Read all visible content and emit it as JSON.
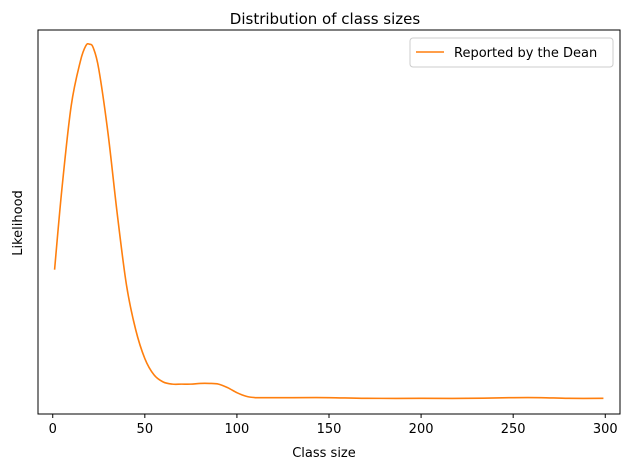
{
  "chart_data": {
    "type": "line",
    "title": "Distribution of class sizes",
    "xlabel": "Class size",
    "ylabel": "Likelihood",
    "xlim": [
      -8,
      308
    ],
    "ylim": [
      -0.002,
      0.052
    ],
    "x_ticks": [
      0,
      50,
      100,
      150,
      200,
      250,
      300
    ],
    "y_ticks_shown": false,
    "grid": false,
    "legend": {
      "placement": "top-right"
    },
    "series": [
      {
        "name": "Reported by the Dean",
        "color": "#ff7f0e",
        "x": [
          1,
          5,
          10,
          15,
          18,
          20,
          22,
          25,
          30,
          35,
          40,
          45,
          50,
          55,
          60,
          65,
          70,
          75,
          80,
          85,
          90,
          95,
          100,
          105,
          110,
          115,
          120,
          130,
          150,
          170,
          200,
          225,
          250,
          265,
          280,
          299
        ],
        "y": [
          0.0183,
          0.0297,
          0.0413,
          0.0476,
          0.0498,
          0.05,
          0.0495,
          0.0465,
          0.0375,
          0.0262,
          0.0162,
          0.0099,
          0.0058,
          0.0035,
          0.0025,
          0.0022,
          0.0022,
          0.0022,
          0.0023,
          0.0023,
          0.0022,
          0.0017,
          0.001,
          0.0005,
          0.0003,
          0.0003,
          0.0003,
          0.0003,
          0.0003,
          0.0002,
          0.0002,
          0.0002,
          0.0003,
          0.0003,
          0.0002,
          0.0002
        ]
      }
    ]
  }
}
